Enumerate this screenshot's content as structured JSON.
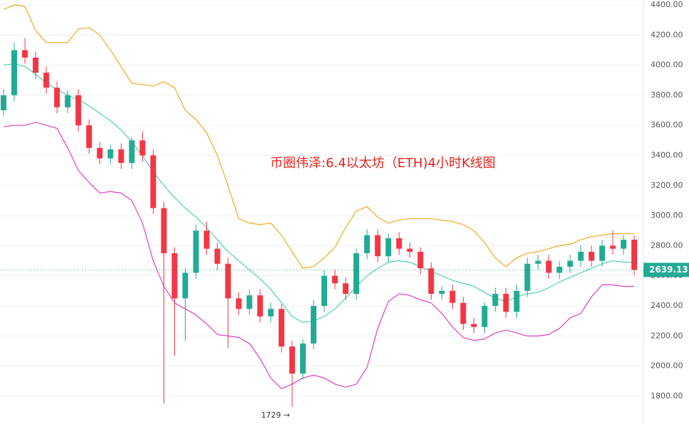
{
  "chart_data": {
    "type": "candlestick",
    "title": "币圈伟泽:6.4以太坊（ETH)4小时K线图",
    "min_label": "1729 →",
    "up_color": "#22ab94",
    "down_color": "#f23645",
    "ylim": [
      1615,
      4433
    ],
    "yticks": [
      {
        "value": 1800,
        "label": "1800.00"
      },
      {
        "value": 2000,
        "label": "2000.00"
      },
      {
        "value": 2200,
        "label": "2200.00"
      },
      {
        "value": 2400,
        "label": "2400.00"
      },
      {
        "value": 2600,
        "label": "2600.00"
      },
      {
        "value": 2800,
        "label": "2800.00"
      },
      {
        "value": 3000,
        "label": "3000.00"
      },
      {
        "value": 3200,
        "label": "3200.00"
      },
      {
        "value": 3400,
        "label": "3400.00"
      },
      {
        "value": 3600,
        "label": "3600.00"
      },
      {
        "value": 3800,
        "label": "3800.00"
      },
      {
        "value": 4000,
        "label": "4000.00"
      },
      {
        "value": 4200,
        "label": "4200.00"
      },
      {
        "value": 4400,
        "label": "4400.00"
      }
    ],
    "grid": true,
    "open": [
      3700,
      3800,
      4100,
      4050,
      3950,
      3850,
      3720,
      3800,
      3600,
      3450,
      3380,
      3440,
      3350,
      3500,
      3400,
      3050,
      2750,
      2450,
      2620,
      2900,
      2780,
      2680,
      2450,
      2380,
      2470,
      2330,
      2380,
      2130,
      1950,
      2150,
      2400,
      2600,
      2550,
      2480,
      2750,
      2870,
      2730,
      2850,
      2780,
      2760,
      2650,
      2480,
      2500,
      2420,
      2280,
      2260,
      2400,
      2480,
      2360,
      2500,
      2680,
      2700,
      2620,
      2660,
      2700,
      2760,
      2700,
      2800,
      2780,
      2840
    ],
    "high": [
      3840,
      4150,
      4180,
      4090,
      3990,
      3890,
      3830,
      3840,
      3640,
      3490,
      3470,
      3480,
      3520,
      3560,
      3440,
      3090,
      2790,
      2650,
      2940,
      2960,
      2820,
      2720,
      2490,
      2510,
      2510,
      2420,
      2410,
      2170,
      2180,
      2440,
      2640,
      2640,
      2590,
      2780,
      2910,
      2910,
      2880,
      2890,
      2820,
      2790,
      2690,
      2530,
      2540,
      2460,
      2320,
      2420,
      2520,
      2520,
      2540,
      2720,
      2740,
      2740,
      2700,
      2740,
      2800,
      2800,
      2840,
      2900,
      2870,
      2870
    ],
    "low": [
      3660,
      3760,
      4010,
      3910,
      3810,
      3680,
      3680,
      3560,
      3410,
      3340,
      3340,
      3310,
      3310,
      3360,
      3010,
      1750,
      2070,
      2170,
      2580,
      2740,
      2640,
      2120,
      2340,
      2340,
      2290,
      2290,
      2090,
      1729,
      1910,
      2110,
      2360,
      2510,
      2440,
      2440,
      2710,
      2690,
      2690,
      2740,
      2720,
      2610,
      2440,
      2440,
      2380,
      2240,
      2220,
      2220,
      2360,
      2320,
      2320,
      2460,
      2640,
      2580,
      2580,
      2620,
      2660,
      2660,
      2660,
      2740,
      2740,
      2600
    ],
    "close": [
      3800,
      4100,
      4050,
      3950,
      3850,
      3720,
      3800,
      3600,
      3450,
      3380,
      3440,
      3350,
      3500,
      3400,
      3050,
      2750,
      2450,
      2620,
      2900,
      2780,
      2680,
      2450,
      2380,
      2470,
      2330,
      2380,
      2130,
      1950,
      2150,
      2400,
      2600,
      2550,
      2480,
      2750,
      2870,
      2730,
      2850,
      2780,
      2760,
      2650,
      2480,
      2500,
      2420,
      2280,
      2260,
      2400,
      2480,
      2360,
      2500,
      2680,
      2700,
      2620,
      2660,
      2700,
      2760,
      2700,
      2800,
      2780,
      2840,
      2639.13
    ],
    "bands": [
      {
        "color": "#f5a623",
        "values": [
          4370,
          4400,
          4390,
          4230,
          4150,
          4150,
          4150,
          4240,
          4250,
          4200,
          4100,
          3990,
          3880,
          3870,
          3860,
          3890,
          3850,
          3700,
          3640,
          3550,
          3400,
          3200,
          2980,
          2950,
          2940,
          2950,
          2870,
          2760,
          2650,
          2660,
          2720,
          2790,
          2920,
          3030,
          3060,
          2990,
          2950,
          2970,
          2980,
          2980,
          2980,
          2970,
          2960,
          2940,
          2900,
          2820,
          2720,
          2660,
          2720,
          2750,
          2760,
          2780,
          2800,
          2810,
          2840,
          2860,
          2870,
          2880,
          2880,
          2880
        ]
      },
      {
        "color": "#4dd0b8",
        "values": [
          4000,
          4010,
          3990,
          3940,
          3880,
          3840,
          3800,
          3770,
          3730,
          3680,
          3630,
          3570,
          3490,
          3400,
          3290,
          3200,
          3120,
          3050,
          2990,
          2920,
          2840,
          2760,
          2700,
          2640,
          2580,
          2510,
          2420,
          2330,
          2290,
          2300,
          2330,
          2380,
          2450,
          2530,
          2600,
          2650,
          2690,
          2700,
          2690,
          2660,
          2630,
          2600,
          2570,
          2550,
          2530,
          2490,
          2450,
          2430,
          2460,
          2480,
          2490,
          2520,
          2560,
          2590,
          2620,
          2650,
          2680,
          2700,
          2690,
          2690
        ]
      },
      {
        "color": "#e040c0",
        "values": [
          3590,
          3600,
          3600,
          3620,
          3600,
          3580,
          3450,
          3300,
          3220,
          3150,
          3160,
          3150,
          3100,
          2950,
          2700,
          2530,
          2420,
          2380,
          2340,
          2280,
          2210,
          2200,
          2190,
          2150,
          2050,
          1920,
          1850,
          1880,
          1920,
          1940,
          1920,
          1880,
          1860,
          1880,
          1990,
          2250,
          2430,
          2480,
          2470,
          2440,
          2420,
          2350,
          2260,
          2190,
          2170,
          2180,
          2220,
          2240,
          2220,
          2200,
          2200,
          2210,
          2250,
          2320,
          2350,
          2460,
          2540,
          2540,
          2530,
          2530
        ]
      }
    ]
  }
}
